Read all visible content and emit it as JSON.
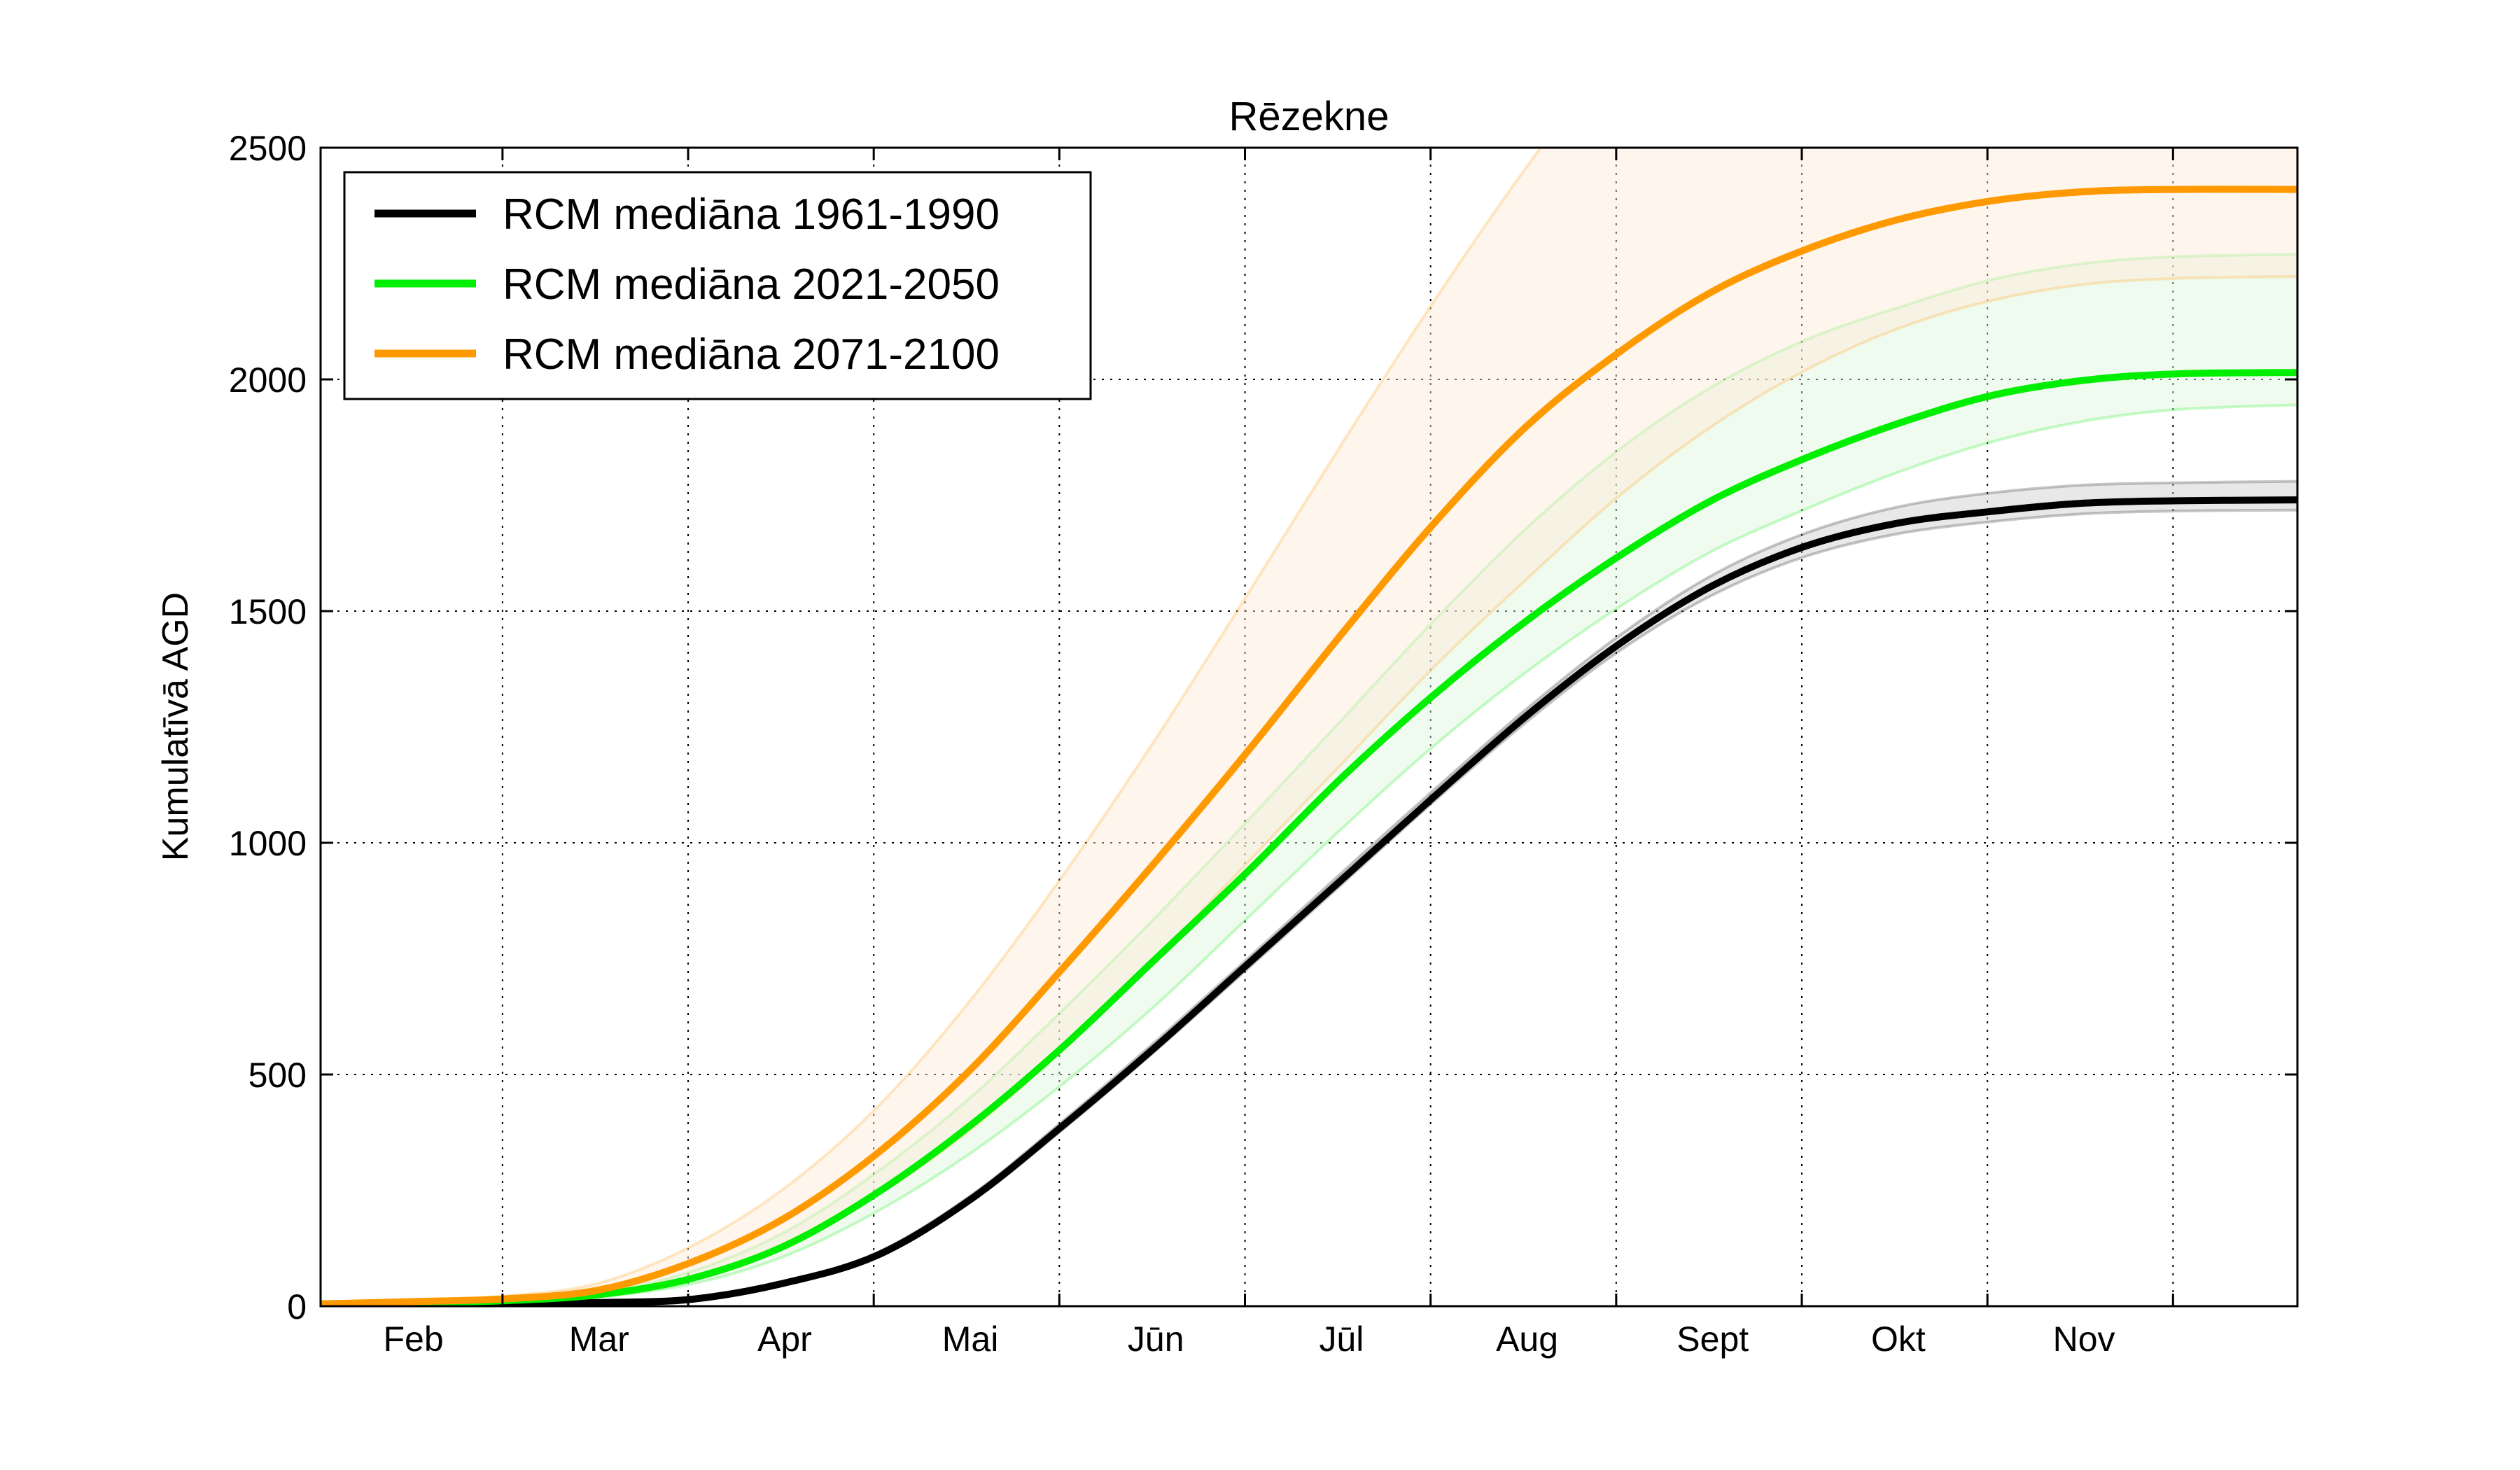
{
  "chart_data": {
    "type": "line",
    "title": "Rēzekne",
    "xlabel": "",
    "ylabel": "Kumulatīvā AGD",
    "ylim": [
      0,
      2500
    ],
    "yticks": [
      0,
      500,
      1000,
      1500,
      2000,
      2500
    ],
    "xlim": [
      1.0,
      11.65
    ],
    "grid": true,
    "grid_style": "dotted",
    "legend_position": "top-left",
    "months": [
      {
        "label": "Feb",
        "pos": 1.5
      },
      {
        "label": "Mar",
        "pos": 2.5
      },
      {
        "label": "Apr",
        "pos": 3.5
      },
      {
        "label": "Mai",
        "pos": 4.5
      },
      {
        "label": "Jūn",
        "pos": 5.5
      },
      {
        "label": "Jūl",
        "pos": 6.5
      },
      {
        "label": "Aug",
        "pos": 7.5
      },
      {
        "label": "Sept",
        "pos": 8.5
      },
      {
        "label": "Okt",
        "pos": 9.5
      },
      {
        "label": "Nov",
        "pos": 10.5
      }
    ],
    "gridlines_x": [
      1.98,
      2.98,
      3.98,
      4.98,
      5.98,
      6.98,
      7.98,
      8.98,
      9.98,
      10.98
    ],
    "x": [
      1.0,
      1.5,
      2.0,
      2.5,
      3.0,
      3.5,
      4.0,
      4.5,
      5.0,
      5.5,
      6.0,
      6.5,
      7.0,
      7.5,
      8.0,
      8.5,
      9.0,
      9.5,
      10.0,
      10.5,
      11.0,
      11.65
    ],
    "series": [
      {
        "name": "RCM mediāna 1961-1990",
        "color": "#000000",
        "values": [
          5,
          5,
          6,
          8,
          15,
          50,
          110,
          230,
          390,
          560,
          740,
          920,
          1100,
          1275,
          1430,
          1555,
          1640,
          1690,
          1715,
          1733,
          1738,
          1740
        ],
        "band_color": "#cccccc",
        "band_lower": [
          5,
          5,
          6,
          8,
          14,
          48,
          106,
          224,
          382,
          552,
          730,
          910,
          1090,
          1262,
          1415,
          1535,
          1618,
          1667,
          1693,
          1710,
          1716,
          1718
        ],
        "band_upper": [
          5,
          5,
          6,
          9,
          17,
          54,
          116,
          238,
          400,
          572,
          752,
          935,
          1115,
          1290,
          1448,
          1578,
          1668,
          1725,
          1755,
          1772,
          1777,
          1780
        ]
      },
      {
        "name": "RCM mediāna 2021-2050",
        "color": "#00ee00",
        "values": [
          5,
          8,
          12,
          25,
          60,
          130,
          245,
          390,
          560,
          750,
          940,
          1140,
          1320,
          1480,
          1620,
          1740,
          1830,
          1905,
          1965,
          1998,
          2012,
          2015
        ],
        "band_color": "#ddf7dd",
        "band_lower": [
          5,
          7,
          10,
          20,
          48,
          108,
          205,
          330,
          480,
          650,
          840,
          1030,
          1210,
          1370,
          1510,
          1630,
          1720,
          1800,
          1865,
          1910,
          1935,
          1945
        ],
        "band_upper": [
          5,
          9,
          14,
          30,
          75,
          160,
          290,
          450,
          640,
          840,
          1050,
          1265,
          1480,
          1680,
          1850,
          1985,
          2085,
          2155,
          2215,
          2250,
          2265,
          2270
        ]
      },
      {
        "name": "RCM mediāna 2071-2100",
        "color": "#ff9900",
        "values": [
          5,
          10,
          16,
          35,
          95,
          190,
          330,
          510,
          730,
          960,
          1200,
          1450,
          1690,
          1900,
          2060,
          2190,
          2280,
          2345,
          2385,
          2405,
          2410,
          2410
        ],
        "band_color": "#fde8d4",
        "band_lower": [
          5,
          8,
          12,
          24,
          62,
          130,
          240,
          380,
          555,
          750,
          960,
          1170,
          1380,
          1570,
          1750,
          1900,
          2020,
          2110,
          2170,
          2205,
          2218,
          2222
        ],
        "band_upper": [
          5,
          12,
          22,
          50,
          130,
          255,
          430,
          660,
          930,
          1225,
          1540,
          1860,
          2170,
          2460,
          2720,
          2900,
          3000,
          3050,
          3070,
          3080,
          3085,
          3085
        ]
      }
    ]
  }
}
